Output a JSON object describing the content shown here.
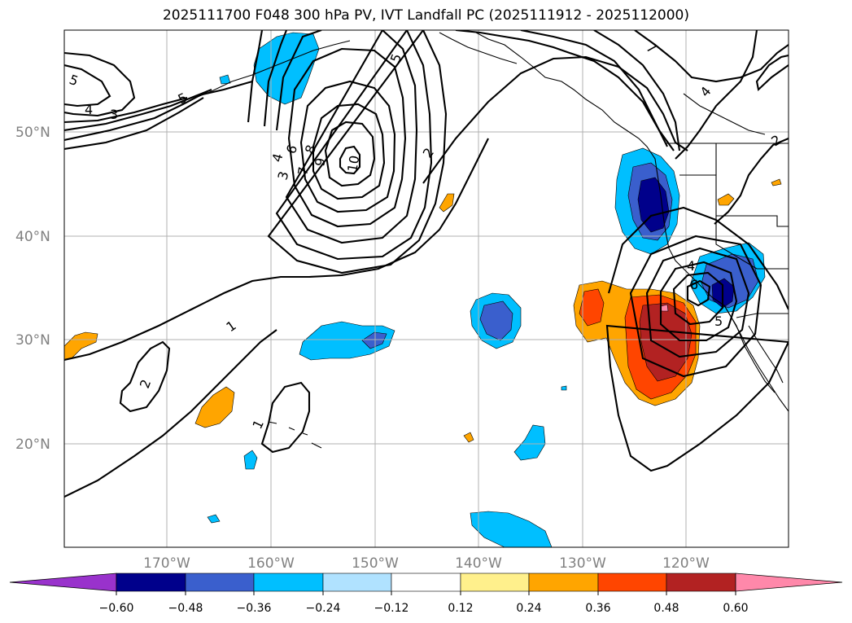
{
  "title": "2025111700 F048 300 hPa PV, IVT Landfall PC (2025111912 - 2025112000)",
  "latitudes": [
    "50°N",
    "40°N",
    "30°N",
    "20°N"
  ],
  "longitudes": [
    "170°W",
    "160°W",
    "150°W",
    "140°W",
    "130°W",
    "120°W"
  ],
  "colorbar": {
    "colors": [
      "#9932cc",
      "#00008b",
      "#3a5fcd",
      "#00bfff",
      "#b0e2ff",
      "#ffffff",
      "#fff08c",
      "#ffa500",
      "#ff4500",
      "#b22222",
      "#ff88aa"
    ],
    "ticks": [
      "−0.60",
      "−0.48",
      "−0.36",
      "−0.24",
      "−0.12",
      "0.12",
      "0.24",
      "0.36",
      "0.48",
      "0.60"
    ]
  },
  "contour_labels": {
    "l1": "5",
    "l2": "4",
    "l3": "3",
    "l4": "5",
    "l5": "6",
    "l6": "7",
    "l7": "8",
    "l8": "9",
    "l9": "10",
    "l10": "4",
    "l11": "3",
    "l12": "2",
    "l13": "1",
    "l14": "2",
    "l15": "1",
    "l16": "5",
    "l17": "7",
    "l18": "4",
    "l19": "2",
    "l20": "4",
    "l21": "6",
    "l22": "5"
  }
}
